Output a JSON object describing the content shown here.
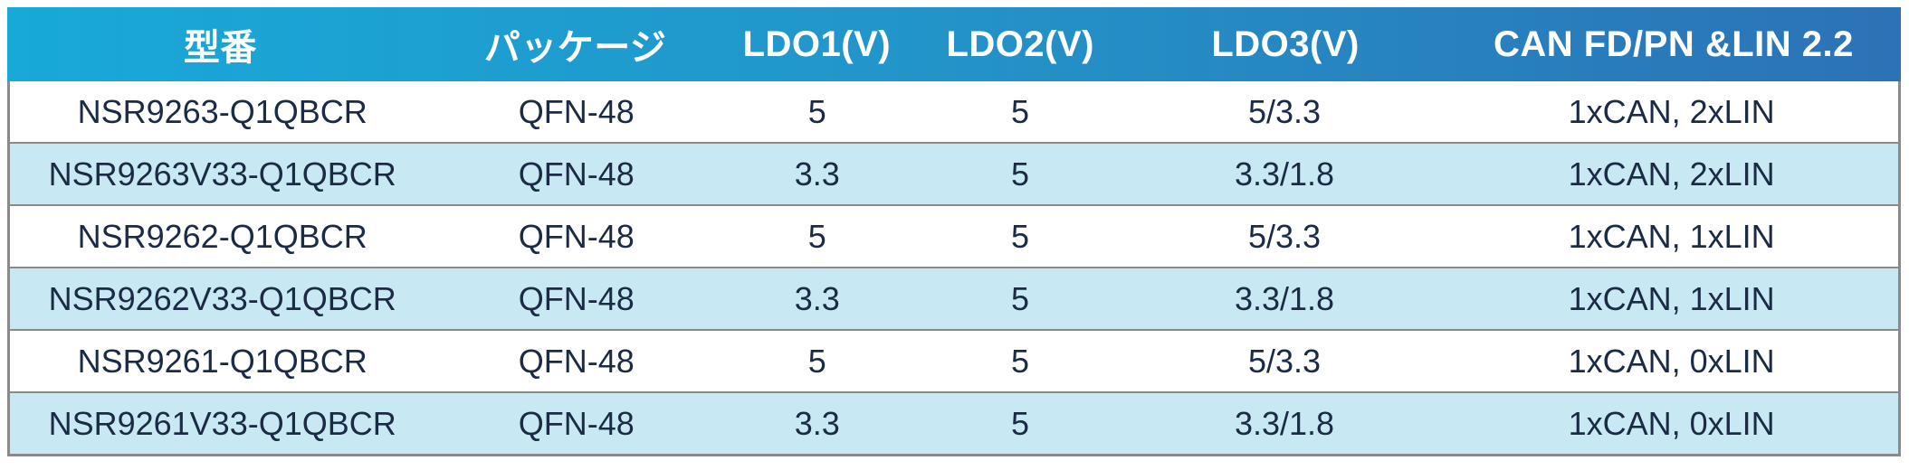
{
  "table": {
    "headers": [
      "型番",
      "パッケージ",
      "LDO1(V)",
      "LDO2(V)",
      "LDO3(V)",
      "CAN FD/PN &LIN 2.2"
    ],
    "rows": [
      [
        "NSR9263-Q1QBCR",
        "QFN-48",
        "5",
        "5",
        "5/3.3",
        "1xCAN, 2xLIN"
      ],
      [
        "NSR9263V33-Q1QBCR",
        "QFN-48",
        "3.3",
        "5",
        "3.3/1.8",
        "1xCAN, 2xLIN"
      ],
      [
        "NSR9262-Q1QBCR",
        "QFN-48",
        "5",
        "5",
        "5/3.3",
        "1xCAN, 1xLIN"
      ],
      [
        "NSR9262V33-Q1QBCR",
        "QFN-48",
        "3.3",
        "5",
        "3.3/1.8",
        "1xCAN, 1xLIN"
      ],
      [
        "NSR9261-Q1QBCR",
        "QFN-48",
        "5",
        "5",
        "5/3.3",
        "1xCAN, 0xLIN"
      ],
      [
        "NSR9261V33-Q1QBCR",
        "QFN-48",
        "3.3",
        "5",
        "3.3/1.8",
        "1xCAN, 0xLIN"
      ]
    ],
    "colors": {
      "header_gradient_start": "#18a9d9",
      "header_gradient_end": "#2c72b6",
      "header_text": "#ffffff",
      "row_bg": "#ffffff",
      "row_alt_bg": "#c8e9f4",
      "body_text": "#1b2b45",
      "border": "#8a8a8a"
    }
  }
}
